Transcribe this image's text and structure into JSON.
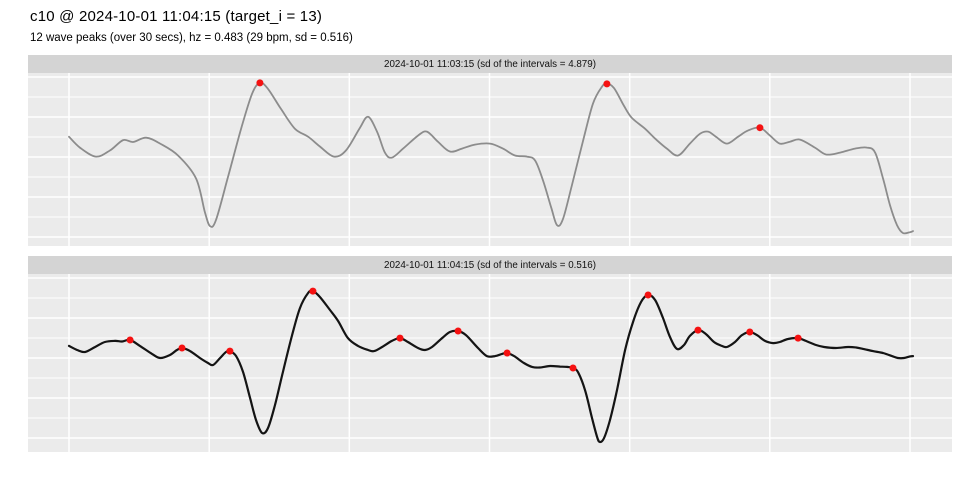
{
  "header": {
    "title": "c10 @ 2024-10-01 11:04:15 (target_i = 13)",
    "subtitle": "12 wave peaks (over 30 secs), hz = 0.483 (29 bpm, sd = 0.516)"
  },
  "style": {
    "panel_bg": "#ebebeb",
    "strip_bg": "#d4d4d4",
    "grid_color": "#ffffff",
    "peak_color": "#f51111",
    "line_colors": [
      "#8c8c8c",
      "#141414"
    ]
  },
  "chart_data": [
    {
      "type": "line",
      "title": "2024-10-01 11:03:15 (sd of the intervals = 4.879)",
      "xlabel": "",
      "ylabel": "",
      "x_unit": "seconds",
      "x_range": [
        0,
        30.1
      ],
      "x_gridlines_sec": [
        0,
        5,
        10,
        15,
        20,
        25,
        30
      ],
      "tick_labels_shown": false,
      "legend": "none",
      "line_color_index": 0,
      "line_width": 1.8,
      "points": [
        [
          0,
          0.632
        ],
        [
          0.39,
          0.569
        ],
        [
          0.96,
          0.517
        ],
        [
          1.46,
          0.552
        ],
        [
          1.93,
          0.612
        ],
        [
          2.28,
          0.601
        ],
        [
          2.75,
          0.626
        ],
        [
          3.25,
          0.592
        ],
        [
          3.89,
          0.523
        ],
        [
          4.53,
          0.391
        ],
        [
          4.85,
          0.195
        ],
        [
          5.03,
          0.115
        ],
        [
          5.24,
          0.149
        ],
        [
          5.67,
          0.397
        ],
        [
          6.14,
          0.678
        ],
        [
          6.53,
          0.879
        ],
        [
          6.81,
          0.943
        ],
        [
          7.1,
          0.908
        ],
        [
          7.56,
          0.793
        ],
        [
          8.06,
          0.678
        ],
        [
          8.53,
          0.632
        ],
        [
          8.95,
          0.575
        ],
        [
          9.45,
          0.517
        ],
        [
          9.88,
          0.552
        ],
        [
          10.38,
          0.684
        ],
        [
          10.67,
          0.747
        ],
        [
          10.99,
          0.661
        ],
        [
          11.27,
          0.54
        ],
        [
          11.52,
          0.511
        ],
        [
          11.92,
          0.563
        ],
        [
          12.45,
          0.638
        ],
        [
          12.77,
          0.661
        ],
        [
          13.16,
          0.603
        ],
        [
          13.59,
          0.546
        ],
        [
          14.02,
          0.563
        ],
        [
          14.48,
          0.586
        ],
        [
          15.02,
          0.592
        ],
        [
          15.48,
          0.563
        ],
        [
          15.91,
          0.523
        ],
        [
          16.34,
          0.517
        ],
        [
          16.63,
          0.494
        ],
        [
          16.91,
          0.379
        ],
        [
          17.2,
          0.224
        ],
        [
          17.41,
          0.121
        ],
        [
          17.62,
          0.155
        ],
        [
          17.94,
          0.351
        ],
        [
          18.34,
          0.609
        ],
        [
          18.69,
          0.822
        ],
        [
          19.01,
          0.92
        ],
        [
          19.19,
          0.937
        ],
        [
          19.44,
          0.914
        ],
        [
          19.8,
          0.81
        ],
        [
          20.08,
          0.741
        ],
        [
          20.55,
          0.678
        ],
        [
          20.91,
          0.621
        ],
        [
          21.33,
          0.563
        ],
        [
          21.73,
          0.523
        ],
        [
          22.15,
          0.592
        ],
        [
          22.51,
          0.649
        ],
        [
          22.8,
          0.661
        ],
        [
          23.08,
          0.632
        ],
        [
          23.47,
          0.592
        ],
        [
          23.87,
          0.632
        ],
        [
          24.22,
          0.667
        ],
        [
          24.65,
          0.684
        ],
        [
          25.01,
          0.638
        ],
        [
          25.36,
          0.592
        ],
        [
          25.72,
          0.603
        ],
        [
          26.08,
          0.615
        ],
        [
          26.61,
          0.569
        ],
        [
          27.01,
          0.529
        ],
        [
          27.51,
          0.54
        ],
        [
          28.04,
          0.563
        ],
        [
          28.47,
          0.569
        ],
        [
          28.76,
          0.54
        ],
        [
          29.04,
          0.391
        ],
        [
          29.29,
          0.236
        ],
        [
          29.54,
          0.121
        ],
        [
          29.75,
          0.075
        ],
        [
          30,
          0.08
        ],
        [
          30.11,
          0.086
        ]
      ],
      "peaks": [
        [
          6.81,
          0.943
        ],
        [
          19.19,
          0.937
        ],
        [
          24.65,
          0.684
        ]
      ]
    },
    {
      "type": "line",
      "title": "2024-10-01 11:04:15 (sd of the intervals = 0.516)",
      "xlabel": "",
      "ylabel": "",
      "x_unit": "seconds",
      "x_range": [
        0,
        30.1
      ],
      "x_gridlines_sec": [
        0,
        5,
        10,
        15,
        20,
        25,
        30
      ],
      "tick_labels_shown": false,
      "legend": "none",
      "line_color_index": 1,
      "line_width": 2.2,
      "points": [
        [
          0,
          0.596
        ],
        [
          0.29,
          0.573
        ],
        [
          0.57,
          0.562
        ],
        [
          0.93,
          0.59
        ],
        [
          1.28,
          0.618
        ],
        [
          1.64,
          0.624
        ],
        [
          1.89,
          0.621
        ],
        [
          2.18,
          0.629
        ],
        [
          2.53,
          0.596
        ],
        [
          2.96,
          0.551
        ],
        [
          3.25,
          0.528
        ],
        [
          3.6,
          0.545
        ],
        [
          3.85,
          0.573
        ],
        [
          4.03,
          0.584
        ],
        [
          4.32,
          0.567
        ],
        [
          4.67,
          0.528
        ],
        [
          4.96,
          0.5
        ],
        [
          5.14,
          0.489
        ],
        [
          5.39,
          0.528
        ],
        [
          5.6,
          0.562
        ],
        [
          5.74,
          0.567
        ],
        [
          5.96,
          0.539
        ],
        [
          6.21,
          0.449
        ],
        [
          6.46,
          0.303
        ],
        [
          6.67,
          0.18
        ],
        [
          6.89,
          0.107
        ],
        [
          7.1,
          0.135
        ],
        [
          7.35,
          0.264
        ],
        [
          7.63,
          0.449
        ],
        [
          7.96,
          0.657
        ],
        [
          8.24,
          0.809
        ],
        [
          8.53,
          0.893
        ],
        [
          8.7,
          0.904
        ],
        [
          8.95,
          0.871
        ],
        [
          9.31,
          0.798
        ],
        [
          9.6,
          0.736
        ],
        [
          9.95,
          0.64
        ],
        [
          10.31,
          0.596
        ],
        [
          10.67,
          0.573
        ],
        [
          10.88,
          0.567
        ],
        [
          11.17,
          0.59
        ],
        [
          11.52,
          0.624
        ],
        [
          11.81,
          0.64
        ],
        [
          12.09,
          0.618
        ],
        [
          12.45,
          0.584
        ],
        [
          12.7,
          0.573
        ],
        [
          12.95,
          0.59
        ],
        [
          13.31,
          0.64
        ],
        [
          13.59,
          0.674
        ],
        [
          13.88,
          0.68
        ],
        [
          14.16,
          0.657
        ],
        [
          14.59,
          0.584
        ],
        [
          14.91,
          0.539
        ],
        [
          15.2,
          0.539
        ],
        [
          15.45,
          0.551
        ],
        [
          15.63,
          0.556
        ],
        [
          15.88,
          0.539
        ],
        [
          16.23,
          0.5
        ],
        [
          16.52,
          0.478
        ],
        [
          16.8,
          0.475
        ],
        [
          17.16,
          0.483
        ],
        [
          17.52,
          0.48
        ],
        [
          17.77,
          0.478
        ],
        [
          17.98,
          0.472
        ],
        [
          18.16,
          0.449
        ],
        [
          18.41,
          0.348
        ],
        [
          18.66,
          0.191
        ],
        [
          18.84,
          0.084
        ],
        [
          18.94,
          0.056
        ],
        [
          19.09,
          0.079
        ],
        [
          19.3,
          0.18
        ],
        [
          19.55,
          0.348
        ],
        [
          19.84,
          0.573
        ],
        [
          20.12,
          0.73
        ],
        [
          20.41,
          0.843
        ],
        [
          20.66,
          0.882
        ],
        [
          20.91,
          0.854
        ],
        [
          21.19,
          0.753
        ],
        [
          21.44,
          0.646
        ],
        [
          21.69,
          0.579
        ],
        [
          21.94,
          0.601
        ],
        [
          22.15,
          0.652
        ],
        [
          22.44,
          0.685
        ],
        [
          22.72,
          0.663
        ],
        [
          23.01,
          0.618
        ],
        [
          23.29,
          0.596
        ],
        [
          23.47,
          0.59
        ],
        [
          23.76,
          0.618
        ],
        [
          24.01,
          0.657
        ],
        [
          24.29,
          0.674
        ],
        [
          24.54,
          0.657
        ],
        [
          24.83,
          0.624
        ],
        [
          25.12,
          0.612
        ],
        [
          25.36,
          0.618
        ],
        [
          25.65,
          0.635
        ],
        [
          26.01,
          0.64
        ],
        [
          26.29,
          0.624
        ],
        [
          26.65,
          0.601
        ],
        [
          26.94,
          0.59
        ],
        [
          27.36,
          0.584
        ],
        [
          27.79,
          0.59
        ],
        [
          28.08,
          0.587
        ],
        [
          28.33,
          0.579
        ],
        [
          28.68,
          0.567
        ],
        [
          29.04,
          0.556
        ],
        [
          29.36,
          0.539
        ],
        [
          29.57,
          0.528
        ],
        [
          29.79,
          0.528
        ],
        [
          30,
          0.537
        ],
        [
          30.11,
          0.539
        ]
      ],
      "peaks": [
        [
          2.18,
          0.629
        ],
        [
          4.03,
          0.584
        ],
        [
          5.74,
          0.567
        ],
        [
          8.7,
          0.904
        ],
        [
          11.81,
          0.64
        ],
        [
          13.88,
          0.68
        ],
        [
          15.63,
          0.556
        ],
        [
          17.98,
          0.472
        ],
        [
          20.66,
          0.882
        ],
        [
          22.44,
          0.685
        ],
        [
          24.29,
          0.674
        ],
        [
          26.01,
          0.64
        ]
      ]
    }
  ]
}
